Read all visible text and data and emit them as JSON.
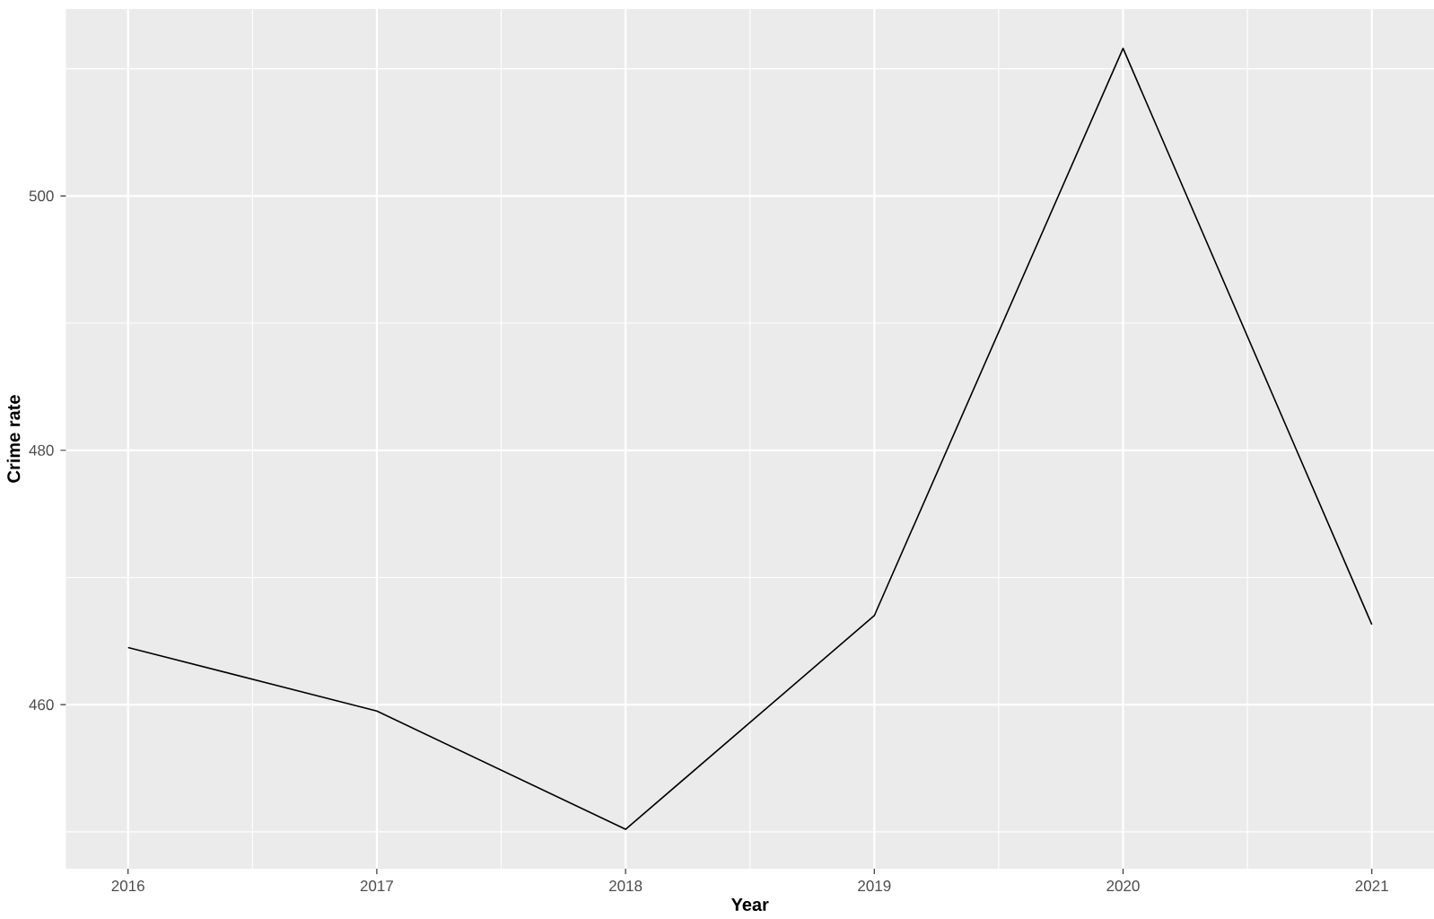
{
  "chart_data": {
    "type": "line",
    "xlabel": "Year",
    "ylabel": "Crime rate",
    "x": [
      2016,
      2017,
      2018,
      2019,
      2020,
      2021
    ],
    "series": [
      {
        "color": "#000000",
        "values": [
          464.5,
          459.5,
          450.2,
          467.0,
          511.6,
          466.3
        ]
      }
    ],
    "xlim": [
      2015.75,
      2021.25
    ],
    "ylim": [
      447.1,
      514.7
    ],
    "xticks": [
      2016,
      2017,
      2018,
      2019,
      2020,
      2021
    ],
    "yticks": [
      460,
      480,
      500
    ],
    "grid": true,
    "marker": "none",
    "line_style": "solid",
    "legend": false
  }
}
